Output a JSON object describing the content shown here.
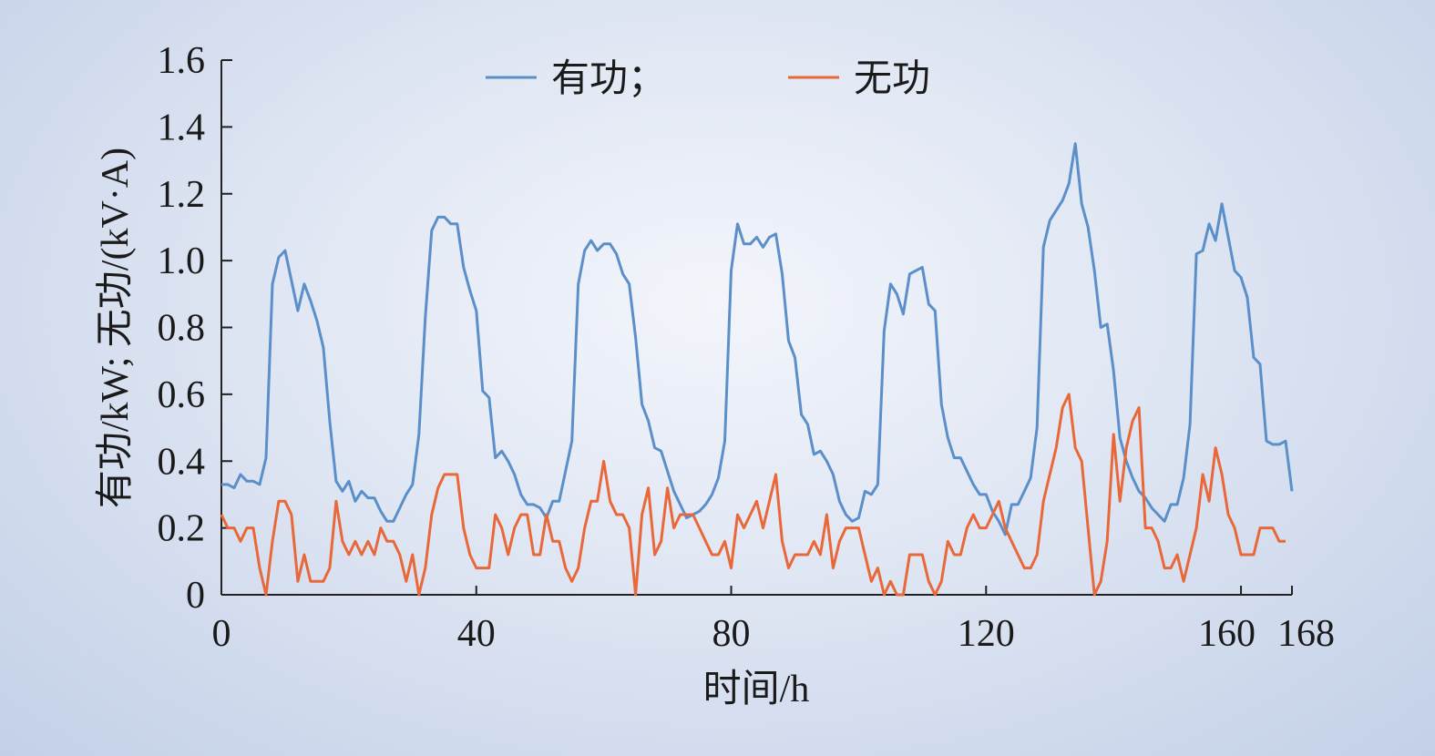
{
  "chart_data": {
    "type": "line",
    "xlabel": "时间/h",
    "ylabel": "有功/kW; 无功/(kV·A)",
    "x": [
      0,
      1,
      2,
      3,
      4,
      5,
      6,
      7,
      8,
      9,
      10,
      11,
      12,
      13,
      14,
      15,
      16,
      17,
      18,
      19,
      20,
      21,
      22,
      23,
      24,
      25,
      26,
      27,
      28,
      29,
      30,
      31,
      32,
      33,
      34,
      35,
      36,
      37,
      38,
      39,
      40,
      41,
      42,
      43,
      44,
      45,
      46,
      47,
      48,
      49,
      50,
      51,
      52,
      53,
      54,
      55,
      56,
      57,
      58,
      59,
      60,
      61,
      62,
      63,
      64,
      65,
      66,
      67,
      68,
      69,
      70,
      71,
      72,
      73,
      74,
      75,
      76,
      77,
      78,
      79,
      80,
      81,
      82,
      83,
      84,
      85,
      86,
      87,
      88,
      89,
      90,
      91,
      92,
      93,
      94,
      95,
      96,
      97,
      98,
      99,
      100,
      101,
      102,
      103,
      104,
      105,
      106,
      107,
      108,
      109,
      110,
      111,
      112,
      113,
      114,
      115,
      116,
      117,
      118,
      119,
      120,
      121,
      122,
      123,
      124,
      125,
      126,
      127,
      128,
      129,
      130,
      131,
      132,
      133,
      134,
      135,
      136,
      137,
      138,
      139,
      140,
      141,
      142,
      143,
      144,
      145,
      146,
      147,
      148,
      149,
      150,
      151,
      152,
      153,
      154,
      155,
      156,
      157,
      158,
      159,
      160,
      161,
      162,
      163,
      164,
      165,
      166,
      167,
      168
    ],
    "series": [
      {
        "name": "有功；",
        "color": "#5b8fc9",
        "values": [
          0.33,
          0.33,
          0.32,
          0.36,
          0.34,
          0.34,
          0.33,
          0.41,
          0.93,
          1.01,
          1.03,
          0.94,
          0.85,
          0.93,
          0.88,
          0.82,
          0.74,
          0.52,
          0.34,
          0.31,
          0.34,
          0.28,
          0.31,
          0.29,
          0.29,
          0.25,
          0.22,
          0.22,
          0.26,
          0.3,
          0.33,
          0.48,
          0.83,
          1.09,
          1.13,
          1.13,
          1.11,
          1.11,
          0.98,
          0.91,
          0.85,
          0.61,
          0.59,
          0.41,
          0.43,
          0.4,
          0.36,
          0.3,
          0.27,
          0.27,
          0.26,
          0.23,
          0.28,
          0.28,
          0.37,
          0.46,
          0.93,
          1.03,
          1.06,
          1.03,
          1.05,
          1.05,
          1.02,
          0.96,
          0.93,
          0.77,
          0.57,
          0.52,
          0.44,
          0.43,
          0.37,
          0.31,
          0.27,
          0.23,
          0.24,
          0.25,
          0.27,
          0.3,
          0.35,
          0.46,
          0.97,
          1.11,
          1.05,
          1.05,
          1.07,
          1.04,
          1.07,
          1.08,
          0.96,
          0.76,
          0.71,
          0.54,
          0.51,
          0.42,
          0.43,
          0.4,
          0.36,
          0.28,
          0.24,
          0.22,
          0.23,
          0.31,
          0.3,
          0.33,
          0.79,
          0.93,
          0.9,
          0.84,
          0.96,
          0.97,
          0.98,
          0.87,
          0.85,
          0.57,
          0.47,
          0.41,
          0.41,
          0.37,
          0.33,
          0.3,
          0.3,
          0.25,
          0.22,
          0.18,
          0.27,
          0.27,
          0.31,
          0.35,
          0.5,
          1.04,
          1.12,
          1.15,
          1.18,
          1.23,
          1.35,
          1.17,
          1.1,
          0.97,
          0.8,
          0.81,
          0.67,
          0.47,
          0.4,
          0.35,
          0.31,
          0.29,
          0.26,
          0.24,
          0.22,
          0.27,
          0.27,
          0.35,
          0.51,
          1.02,
          1.03,
          1.11,
          1.06,
          1.17,
          1.07,
          0.97,
          0.95,
          0.89,
          0.71,
          0.69,
          0.46,
          0.45,
          0.45,
          0.46,
          0.31
        ]
      },
      {
        "name": "无功",
        "color": "#e8683a",
        "values": [
          0.24,
          0.2,
          0.2,
          0.16,
          0.2,
          0.2,
          0.08,
          0.0,
          0.16,
          0.28,
          0.28,
          0.24,
          0.04,
          0.12,
          0.04,
          0.04,
          0.04,
          0.08,
          0.28,
          0.16,
          0.12,
          0.16,
          0.12,
          0.16,
          0.12,
          0.2,
          0.16,
          0.16,
          0.12,
          0.04,
          0.12,
          0.0,
          0.08,
          0.24,
          0.32,
          0.36,
          0.36,
          0.36,
          0.2,
          0.12,
          0.08,
          0.08,
          0.08,
          0.24,
          0.2,
          0.12,
          0.2,
          0.24,
          0.24,
          0.12,
          0.12,
          0.24,
          0.16,
          0.16,
          0.08,
          0.04,
          0.08,
          0.2,
          0.28,
          0.28,
          0.4,
          0.28,
          0.24,
          0.24,
          0.2,
          0.0,
          0.24,
          0.32,
          0.12,
          0.16,
          0.32,
          0.2,
          0.24,
          0.24,
          0.24,
          0.2,
          0.16,
          0.12,
          0.12,
          0.16,
          0.08,
          0.24,
          0.2,
          0.24,
          0.28,
          0.2,
          0.28,
          0.36,
          0.16,
          0.08,
          0.12,
          0.12,
          0.12,
          0.16,
          0.12,
          0.24,
          0.08,
          0.16,
          0.2,
          0.2,
          0.2,
          0.12,
          0.04,
          0.08,
          0.0,
          0.04,
          0.0,
          0.0,
          0.12,
          0.12,
          0.12,
          0.04,
          0.0,
          0.04,
          0.16,
          0.12,
          0.12,
          0.2,
          0.24,
          0.2,
          0.2,
          0.24,
          0.28,
          0.2,
          0.16,
          0.12,
          0.08,
          0.08,
          0.12,
          0.28,
          0.36,
          0.44,
          0.56,
          0.6,
          0.44,
          0.4,
          0.2,
          0.0,
          0.04,
          0.16,
          0.48,
          0.28,
          0.44,
          0.52,
          0.56,
          0.2,
          0.2,
          0.16,
          0.08,
          0.08,
          0.12,
          0.04,
          0.12,
          0.2,
          0.36,
          0.28,
          0.44,
          0.36,
          0.24,
          0.2,
          0.12,
          0.12,
          0.12,
          0.2,
          0.2,
          0.2,
          0.16,
          0.16,
          null
        ]
      }
    ],
    "xlim": [
      0,
      168
    ],
    "xticks": [
      0,
      40,
      80,
      120,
      160,
      168
    ],
    "ylim": [
      0,
      1.6
    ],
    "yticks": [
      0,
      0.2,
      0.4,
      0.6,
      0.8,
      {
        "value": 1,
        "label": "1.0"
      },
      1.2,
      1.4,
      1.6
    ],
    "legend": "top"
  }
}
